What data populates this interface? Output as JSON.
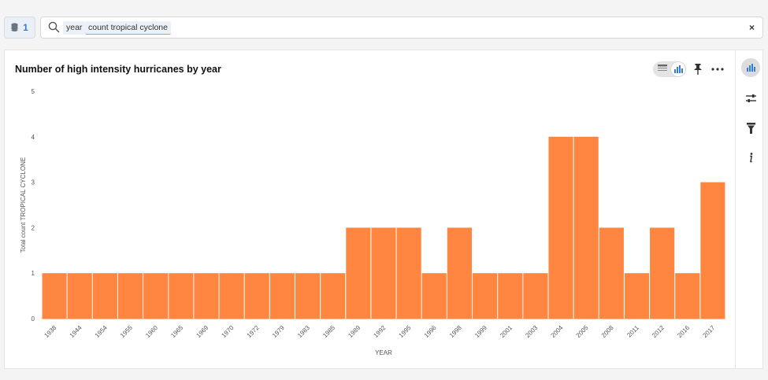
{
  "toolbar": {
    "source_count": "1",
    "search_tokens": [
      "year",
      "count tropical cyclone"
    ],
    "clear_label": "×"
  },
  "card": {
    "title": "Number of high intensity hurricanes by year"
  },
  "colors": {
    "bar": "#ff8640",
    "accent": "#2f7fd8"
  },
  "chart_data": {
    "type": "bar",
    "title": "Number of high intensity hurricanes by year",
    "xlabel": "YEAR",
    "ylabel": "Total count TROPICAL CYCLONE",
    "ylim": [
      0,
      5
    ],
    "yticks": [
      0,
      1,
      2,
      3,
      4,
      5
    ],
    "grid": false,
    "categories": [
      "1938",
      "1944",
      "1954",
      "1955",
      "1960",
      "1965",
      "1969",
      "1970",
      "1972",
      "1979",
      "1983",
      "1985",
      "1989",
      "1992",
      "1995",
      "1996",
      "1998",
      "1999",
      "2001",
      "2003",
      "2004",
      "2005",
      "2008",
      "2011",
      "2012",
      "2016",
      "2017"
    ],
    "values": [
      1,
      1,
      1,
      1,
      1,
      1,
      1,
      1,
      1,
      1,
      1,
      1,
      2,
      2,
      2,
      1,
      2,
      1,
      1,
      1,
      4,
      4,
      2,
      1,
      2,
      1,
      3
    ]
  }
}
